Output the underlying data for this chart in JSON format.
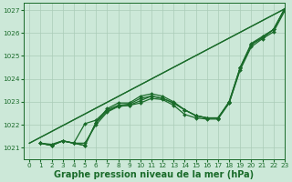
{
  "title": "Graphe pression niveau de la mer (hPa)",
  "xlim": [
    -0.5,
    23
  ],
  "ylim": [
    1020.5,
    1027.3
  ],
  "xticks": [
    0,
    1,
    2,
    3,
    4,
    5,
    6,
    7,
    8,
    9,
    10,
    11,
    12,
    13,
    14,
    15,
    16,
    17,
    18,
    19,
    20,
    21,
    22,
    23
  ],
  "yticks": [
    1021,
    1022,
    1023,
    1024,
    1025,
    1026,
    1027
  ],
  "bg_color": "#cce8d8",
  "grid_color": "#aaccb8",
  "line_color": "#1a6b2a",
  "label_color": "#1a6b2a",
  "series_curved": [
    [
      1021.2,
      1021.1,
      1021.3,
      1021.2,
      1021.1,
      1022.1,
      1022.6,
      1022.8,
      1022.85,
      1023.05,
      1023.25,
      1023.15,
      1022.95,
      1022.65,
      1022.4,
      1022.3,
      1022.3,
      1022.95,
      1024.45,
      1025.5,
      1025.8,
      1026.15,
      1027.05
    ],
    [
      1021.2,
      1021.15,
      1021.3,
      1021.2,
      1021.2,
      1022.0,
      1022.55,
      1022.8,
      1022.85,
      1022.95,
      1023.15,
      1023.1,
      1022.85,
      1022.45,
      1022.3,
      1022.25,
      1022.25,
      1022.95,
      1024.4,
      1025.4,
      1025.75,
      1026.05,
      1026.95
    ],
    [
      1021.2,
      1021.1,
      1021.3,
      1021.2,
      1022.05,
      1022.2,
      1022.65,
      1022.85,
      1022.9,
      1023.15,
      1023.25,
      1023.15,
      1022.95,
      1022.65,
      1022.4,
      1022.3,
      1022.3,
      1023.0,
      1024.5,
      1025.5,
      1025.8,
      1026.15,
      1027.05
    ],
    [
      1021.2,
      1021.1,
      1021.3,
      1021.2,
      1021.1,
      1022.1,
      1022.7,
      1022.95,
      1022.95,
      1023.25,
      1023.35,
      1023.25,
      1023.0,
      1022.65,
      1022.4,
      1022.3,
      1022.3,
      1023.0,
      1024.5,
      1025.55,
      1025.85,
      1026.15,
      1027.05
    ]
  ],
  "series_linear": [
    {
      "x0": 0,
      "y0": 1021.2,
      "x1": 23,
      "y1": 1027.05
    },
    {
      "x0": 0,
      "y0": 1021.2,
      "x1": 23,
      "y1": 1027.05
    }
  ],
  "marker": "D",
  "marker_size": 2.0,
  "line_width": 0.9,
  "tick_fontsize": 5.2,
  "title_fontsize": 7.0,
  "title_bold": true
}
